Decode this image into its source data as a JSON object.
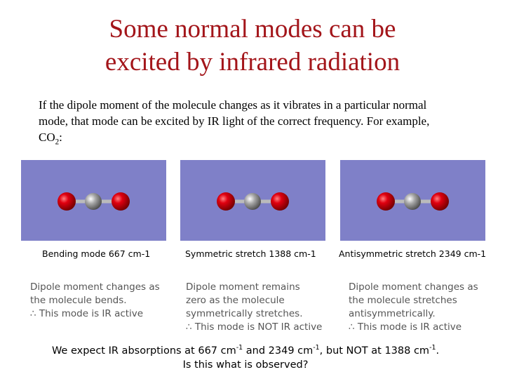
{
  "title": [
    "Some normal modes can be",
    "excited by infrared radiation"
  ],
  "intro": {
    "lines": [
      "If the dipole moment of the molecule changes as it vibrates in a particular normal",
      "mode, that mode can be excited by IR light of the correct frequency.  For example,"
    ],
    "last": [
      "CO",
      "2",
      ":"
    ]
  },
  "panels": [
    {
      "caption": "Bending mode 667 cm-1",
      "description": [
        "Dipole moment changes as",
        "the molecule bends.",
        "∴ This mode is IR active"
      ]
    },
    {
      "caption": "Symmetric stretch 1388 cm-1",
      "description": [
        "Dipole moment remains",
        "zero as the molecule",
        "symmetrically stretches.",
        "∴ This mode is NOT IR active"
      ]
    },
    {
      "caption": "Antisymmetric stretch 2349 cm-1",
      "description": [
        "Dipole moment changes as",
        "the molecule stretches",
        "antisymmetrically.",
        "∴ This mode is IR active"
      ]
    }
  ],
  "footer": {
    "line1": [
      "We expect IR absorptions at 667 cm",
      "-1",
      " and 2349 cm",
      "-1",
      ", but NOT at 1388 cm",
      "-1",
      "."
    ],
    "line2": "Is this what is observed?"
  }
}
